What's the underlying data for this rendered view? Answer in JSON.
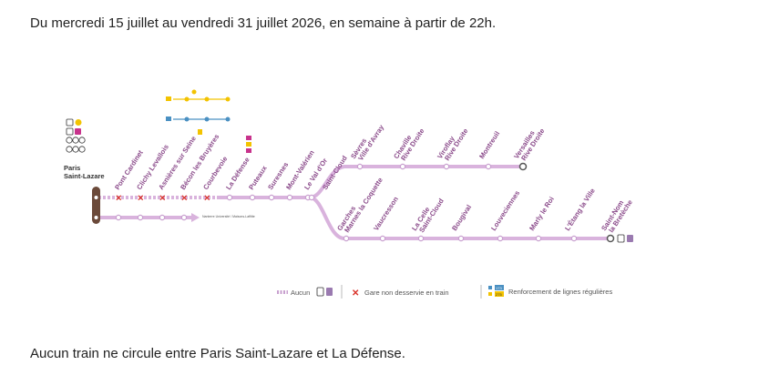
{
  "intro_text": "Du mercredi 15 juillet au vendredi 31 juillet 2026, en semaine à partir de 22h.",
  "footer_text": "Aucun train ne circule entre Paris Saint-Lazare et La Défense.",
  "origin_station": [
    "Paris",
    "Saint-Lazare"
  ],
  "trunk_stations": [
    {
      "label": "Pont Cardinet",
      "closed": true
    },
    {
      "label": "Clichy Levallois",
      "closed": true
    },
    {
      "label": "Asnières sur Seine",
      "closed": true
    },
    {
      "label": "Bécon les Bruyères",
      "closed": true
    },
    {
      "label": "Courbevoie",
      "closed": true
    },
    {
      "label": "La Défense",
      "closed": false
    },
    {
      "label": "Puteaux",
      "closed": false
    },
    {
      "label": "Suresnes",
      "closed": false
    },
    {
      "label": "Mont-Valérien",
      "closed": false
    },
    {
      "label": "Le Val d'Or",
      "closed": false
    },
    {
      "label": "Saint-Cloud",
      "closed": false
    }
  ],
  "upper_branch": [
    {
      "label": "Sèvres",
      "line2": "Ville d'Avray"
    },
    {
      "label": "Chaville",
      "line2": "Rive Droite"
    },
    {
      "label": "Viroflay",
      "line2": "Rive Droite"
    },
    {
      "label": "Montreuil",
      "line2": ""
    },
    {
      "label": "Versailles",
      "line2": "Rive Droite"
    }
  ],
  "lower_branch": [
    {
      "label": "Garches",
      "line2": "Marnes la Coquette"
    },
    {
      "label": "Vaucresson",
      "line2": ""
    },
    {
      "label": "La Celle",
      "line2": "Saint-Cloud"
    },
    {
      "label": "Bougival",
      "line2": ""
    },
    {
      "label": "Louveciennes",
      "line2": ""
    },
    {
      "label": "Marly le Roi",
      "line2": ""
    },
    {
      "label": "L'Étang la Ville",
      "line2": ""
    },
    {
      "label": "Saint-Nom",
      "line2": "la Bretèche"
    }
  ],
  "secondary_branch_note": "Nanterre Université / Maisons-Laffitte",
  "legend": {
    "none_label": "Aucun",
    "closed_label": "Gare non desservie en train",
    "reinforcement_label": "Renforcement de lignes régulières",
    "bus_lines": [
      "173",
      "275"
    ]
  },
  "colors": {
    "line": "#d9b3dd",
    "station_text": "#8a4a8a",
    "closed": "#d9342b",
    "origin": "#6b4a3a",
    "metro_yellow": "#f3c300",
    "metro_blue": "#4a90c2",
    "rer_e": "#c8328c"
  }
}
